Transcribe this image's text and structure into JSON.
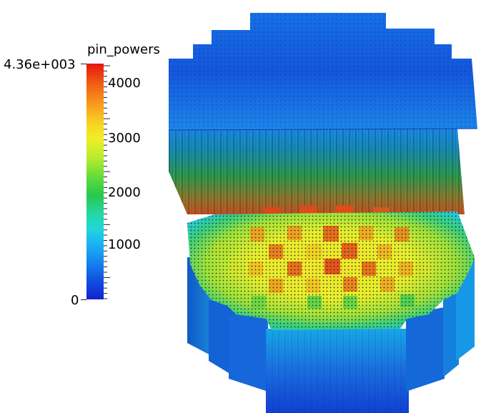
{
  "legend": {
    "title": "pin_powers",
    "max_label": "4.36e+003",
    "min_label": "0",
    "tick_labels": [
      "4000",
      "3000",
      "2000",
      "1000"
    ]
  },
  "colormap": {
    "stops": [
      "#1222d2",
      "#1050e0",
      "#1686ee",
      "#1bb6f2",
      "#22d6dc",
      "#24d8a8",
      "#28c84e",
      "#62dc3a",
      "#b8ec2c",
      "#eeee28",
      "#f7d723",
      "#f8a01e",
      "#f05a14",
      "#e8140f"
    ],
    "range": [
      0,
      4360
    ]
  }
}
